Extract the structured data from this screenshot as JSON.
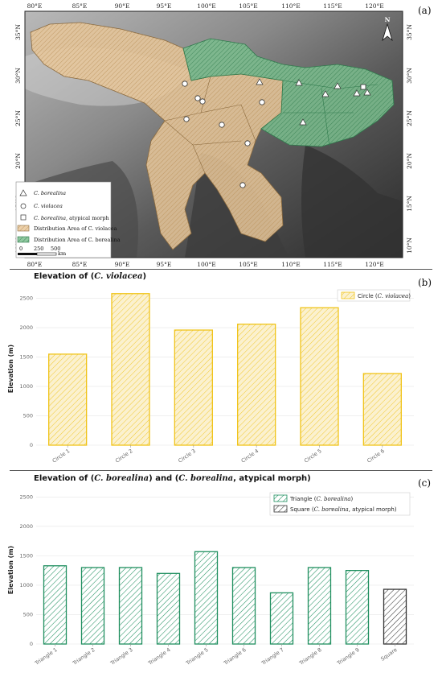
{
  "panels": {
    "a": "(a)",
    "b": "(b)",
    "c": "(c)"
  },
  "map": {
    "lon_labels": [
      "80°E",
      "85°E",
      "90°E",
      "95°E",
      "100°E",
      "105°E",
      "110°E",
      "115°E",
      "120°E"
    ],
    "lat_labels": [
      "35°N",
      "30°N",
      "25°N",
      "20°N",
      "15°N",
      "10°N"
    ],
    "north": "N",
    "scale": {
      "labels": [
        "0",
        "250",
        "500"
      ],
      "unit": "km"
    },
    "legend": {
      "triangle": "C. borealina",
      "circle": "C. violacea",
      "square_species": "C. borealina",
      "square_suffix": ",  atypical morph",
      "area_violacea": "Distribution Area of C. violacea",
      "area_borealina": "Distribution Area of C. borealina"
    },
    "colors": {
      "violacea_area": "#e9c89b",
      "borealina_area": "#7cbf8e"
    }
  },
  "chart_data": [
    {
      "type": "bar",
      "title_prefix": "Elevation of (",
      "title_species": "C. violacea",
      "title_suffix": ")",
      "ylabel": "Elevation (m)",
      "categories": [
        "Circle 1",
        "Circle 2",
        "Circle 3",
        "Circle 4",
        "Circle 5",
        "Circle 6"
      ],
      "values": [
        1550,
        2580,
        1960,
        2060,
        2340,
        1220
      ],
      "yticks": [
        0,
        500,
        1000,
        1500,
        2000,
        2500
      ],
      "ylim": [
        0,
        2700
      ],
      "legend": {
        "label": "Circle (",
        "species": "C. violacea",
        "close": ")",
        "color": "#f0c419"
      },
      "grid": true,
      "legend_position": "top-right"
    },
    {
      "type": "bar",
      "title_prefix": "Elevation of (",
      "title_species": "C. borealina",
      "title_middle": ") and (",
      "title_species2": "C. borealina",
      "title_suffix": ", atypical morph)",
      "ylabel": "Elevation (m)",
      "categories": [
        "Triangle 1",
        "Triangle 2",
        "Triangle 3",
        "Triangle 4",
        "Triangle 5",
        "Triangle 6",
        "Triangle 7",
        "Triangle 8",
        "Triangle 9",
        "Square"
      ],
      "values": [
        1330,
        1300,
        1300,
        1200,
        1570,
        1300,
        870,
        1300,
        1250,
        930
      ],
      "yticks": [
        0,
        500,
        1000,
        1500,
        2000,
        2500
      ],
      "ylim": [
        0,
        2600
      ],
      "legend": [
        {
          "label": "Triangle (",
          "species": "C. borealina",
          "close": ")",
          "color": "#1f8f5f"
        },
        {
          "label": "Square (",
          "species": "C. borealina",
          "close": ", atypical morph)",
          "color": "#333333"
        }
      ],
      "grid": true,
      "legend_position": "top-right"
    }
  ]
}
